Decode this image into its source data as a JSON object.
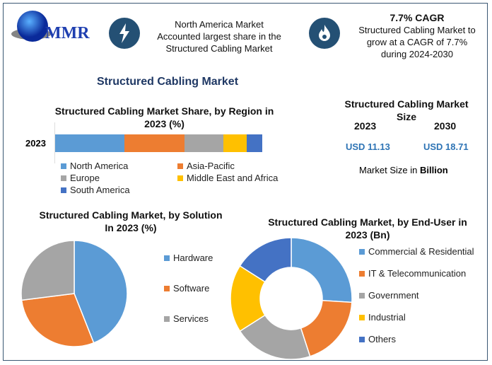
{
  "logo": {
    "text": "MMR"
  },
  "header": {
    "box1": {
      "icon": "lightning-icon",
      "lines": [
        "North America Market",
        "Accounted largest share in the",
        "Structured Cabling Market"
      ]
    },
    "box2": {
      "icon": "flame-icon",
      "title": "7.7% CAGR",
      "lines": [
        "Structured Cabling Market to",
        "grow at a CAGR of 7.7%",
        "during 2024-2030"
      ]
    }
  },
  "main_title": "Structured Cabling Market",
  "size": {
    "title_lines": [
      "Structured Cabling Market",
      "Size"
    ],
    "years": [
      "2023",
      "2030"
    ],
    "values": [
      "USD 11.13",
      "USD 18.71"
    ],
    "note_prefix": "Market Size in ",
    "note_bold": "Billion"
  },
  "colors": {
    "blue": "#5b9bd5",
    "orange": "#ed7d31",
    "gray": "#a5a5a5",
    "yellow": "#ffc000",
    "darkblue": "#4472c4",
    "value": "#2e74b5"
  },
  "chart_data": [
    {
      "type": "bar",
      "orientation": "horizontal-stacked",
      "title_lines": [
        "Structured Cabling Market Share, by Region in",
        "2023 (%)"
      ],
      "categories": [
        "2023"
      ],
      "series": [
        {
          "name": "North America",
          "values": [
            33.5
          ],
          "color": "#5b9bd5"
        },
        {
          "name": "Asia-Pacific",
          "values": [
            29
          ]
        },
        {
          "name": "Europe",
          "values": [
            18.8
          ]
        },
        {
          "name": "Middle East and Africa",
          "values": [
            11.2
          ]
        },
        {
          "name": "South America",
          "values": [
            7.5
          ]
        }
      ]
    },
    {
      "type": "pie",
      "title_lines": [
        "Structured Cabling Market, by Solution",
        "In 2023 (%)"
      ],
      "labels": [
        "Hardware",
        "Software",
        "Services"
      ],
      "values": [
        44,
        29,
        27
      ]
    },
    {
      "type": "pie",
      "donut": true,
      "title_lines": [
        "Structured Cabling Market, by End-User in",
        "2023 (Bn)"
      ],
      "labels": [
        "Commercial & Residential",
        "IT & Telecommunication",
        "Government",
        "Industrial",
        "Others"
      ],
      "values": [
        26,
        19,
        21,
        18,
        16
      ]
    }
  ]
}
